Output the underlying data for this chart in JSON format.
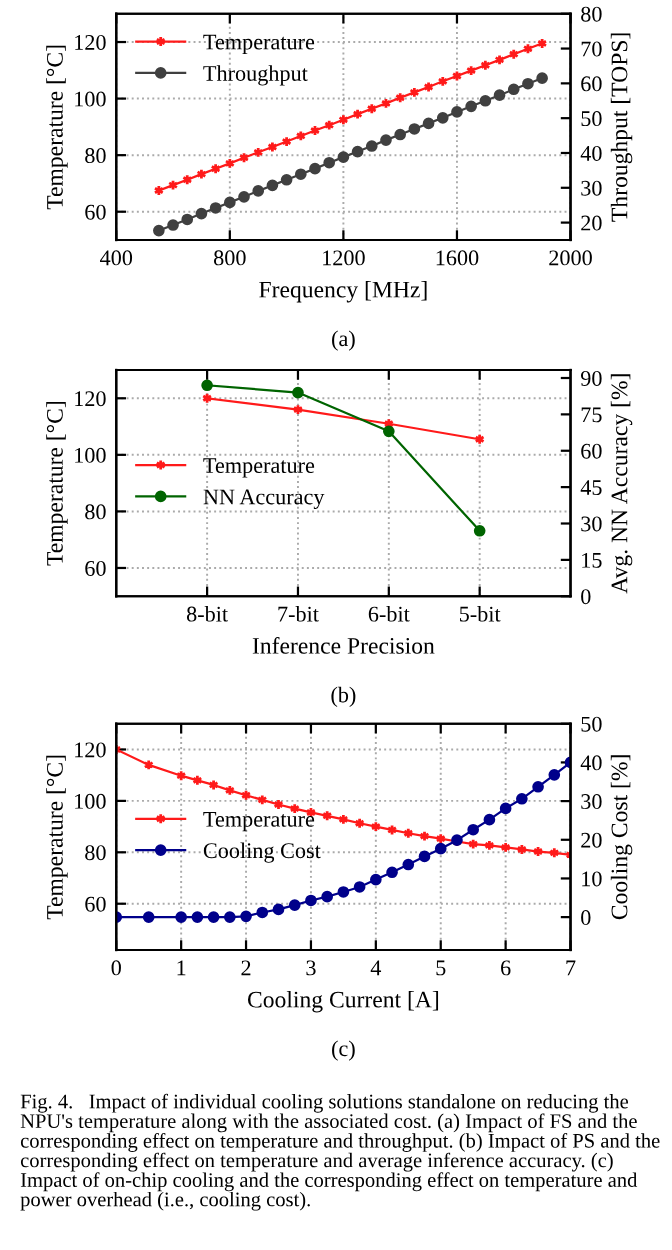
{
  "chart_data": [
    {
      "type": "line",
      "xlabel": "Frequency [MHz]",
      "ylabel": "Temperature [°C]",
      "y2label": "Throughput [TOPS]",
      "x": [
        550,
        600,
        650,
        700,
        750,
        800,
        850,
        900,
        950,
        1000,
        1050,
        1100,
        1150,
        1200,
        1250,
        1300,
        1350,
        1400,
        1450,
        1500,
        1550,
        1600,
        1650,
        1700,
        1750,
        1800,
        1850,
        1900
      ],
      "series": [
        {
          "name": "Temperature",
          "color": "#ff1a1a",
          "marker": "cross",
          "values": [
            67.5,
            69.4,
            71.3,
            73.3,
            75.2,
            77.1,
            79.1,
            81.0,
            82.9,
            84.8,
            86.8,
            88.7,
            90.6,
            92.5,
            94.5,
            96.4,
            98.3,
            100.3,
            102.2,
            104.1,
            106.1,
            108.0,
            109.9,
            111.8,
            113.7,
            115.7,
            117.6,
            119.5
          ]
        },
        {
          "name": "Throughput",
          "color": "#404040",
          "marker": "circle",
          "axis": "y2",
          "values": [
            17.7,
            19.3,
            20.9,
            22.6,
            24.2,
            25.8,
            27.4,
            29.1,
            30.7,
            32.3,
            33.9,
            35.5,
            37.2,
            38.8,
            40.4,
            42.0,
            43.7,
            45.3,
            46.9,
            48.5,
            50.1,
            51.8,
            53.4,
            55.0,
            56.6,
            58.3,
            59.9,
            61.5
          ]
        }
      ],
      "xlim": [
        400,
        2000
      ],
      "xticks": [
        400,
        800,
        1200,
        1600,
        2000
      ],
      "ylim": [
        50,
        130
      ],
      "yticks": [
        60,
        80,
        100,
        120
      ],
      "y2lim": [
        15,
        80
      ],
      "y2ticks": [
        20,
        30,
        40,
        50,
        60,
        70,
        80
      ],
      "grid": true,
      "legend": "top left",
      "line_style": "solid",
      "annotations": [
        "(a)"
      ]
    },
    {
      "type": "line",
      "xlabel": "Inference Precision",
      "ylabel": "Temperature [°C]",
      "y2label": "Avg. NN Accuracy [%]",
      "categories": [
        "8-bit",
        "7-bit",
        "6-bit",
        "5-bit"
      ],
      "series": [
        {
          "name": "Temperature",
          "color": "#ff1a1a",
          "marker": "cross",
          "values": [
            120,
            116,
            111,
            105.5
          ]
        },
        {
          "name": "NN Accuracy",
          "color": "#006400",
          "marker": "circle",
          "axis": "y2",
          "values": [
            87,
            84,
            68,
            27
          ]
        }
      ],
      "ylim": [
        50,
        130
      ],
      "yticks": [
        60,
        80,
        100,
        120
      ],
      "y2lim": [
        0,
        93.3
      ],
      "y2ticks": [
        0,
        15,
        30,
        45,
        60,
        75,
        90
      ],
      "grid": true,
      "legend": "left",
      "line_style": "solid",
      "annotations": [
        "(b)"
      ]
    },
    {
      "type": "line",
      "xlabel": "Cooling Current [A]",
      "ylabel": "Temperature [°C]",
      "y2label": "Cooling Cost [%]",
      "x": [
        0,
        0.5,
        1,
        1.25,
        1.5,
        1.75,
        2,
        2.25,
        2.5,
        2.75,
        3,
        3.25,
        3.5,
        3.75,
        4,
        4.25,
        4.5,
        4.75,
        5,
        5.25,
        5.5,
        5.75,
        6,
        6.25,
        6.5,
        6.75,
        7
      ],
      "series": [
        {
          "name": "Temperature",
          "color": "#ff1a1a",
          "marker": "cross",
          "values": [
            120,
            114,
            109.8,
            108,
            106.2,
            104.1,
            102.2,
            100.4,
            98.6,
            97,
            95.5,
            94.2,
            92.8,
            91.3,
            90,
            88.7,
            87.4,
            86.3,
            85.3,
            84.2,
            83.2,
            82.7,
            81.9,
            81.1,
            80.3,
            79.8,
            79
          ]
        },
        {
          "name": "Cooling Cost",
          "color": "#00008b",
          "marker": "circle",
          "axis": "y2",
          "values": [
            0,
            0,
            0,
            0,
            0,
            0,
            0.2,
            1.2,
            2,
            3.1,
            4.3,
            5.3,
            6.5,
            7.8,
            9.7,
            11.6,
            13.6,
            15.7,
            17.7,
            19.9,
            22.6,
            25.2,
            28.1,
            30.6,
            33.7,
            36.8,
            40
          ]
        }
      ],
      "xlim": [
        0,
        7
      ],
      "xticks": [
        0,
        1,
        2,
        3,
        4,
        5,
        6,
        7
      ],
      "ylim": [
        42,
        130
      ],
      "yticks": [
        60,
        80,
        100,
        120
      ],
      "y2lim": [
        -8.5,
        50
      ],
      "y2ticks": [
        0,
        10,
        20,
        30,
        40,
        50
      ],
      "grid": true,
      "legend": "left",
      "line_style": "solid",
      "annotations": [
        "(c)",
        "Fig. 4.   Impact of individual cooling solutions standalone on reducing the NPU's temperature along with the associated cost. (a) Impact of FS and the corresponding effect on temperature and throughput. (b) Impact of PS and the corresponding effect on temperature and average inference accuracy. (c) Impact of on-chip cooling and the corresponding effect on temperature and power overhead (i.e., cooling cost)."
      ]
    }
  ]
}
